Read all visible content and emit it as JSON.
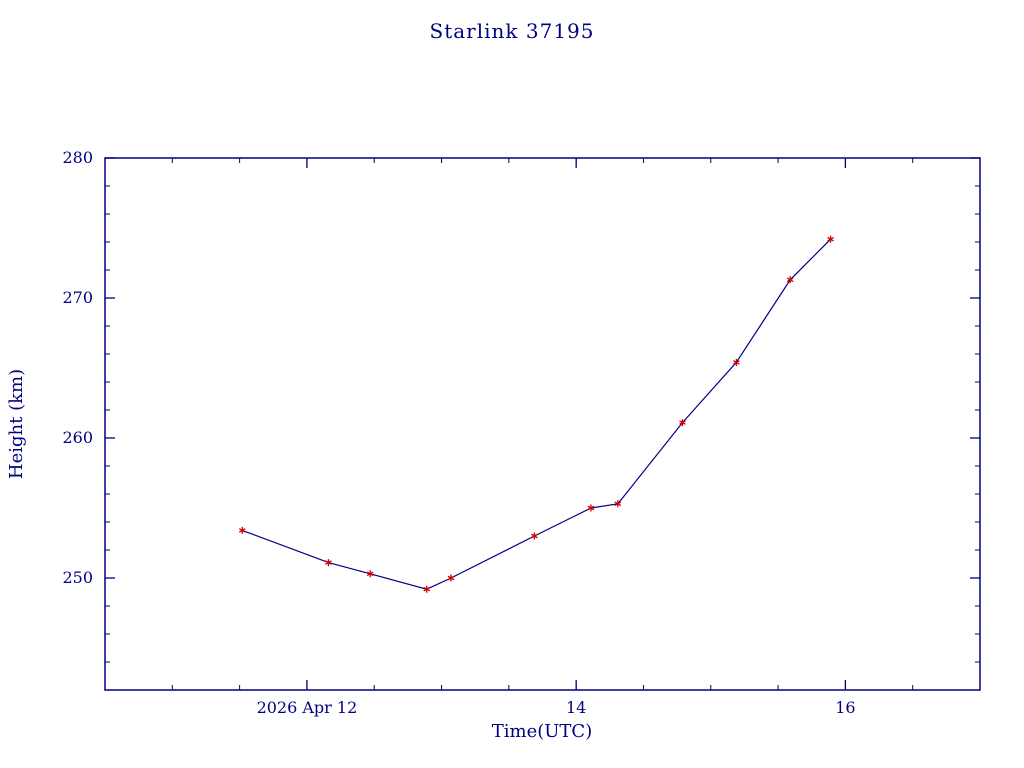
{
  "page": {
    "background_color": "#ffffff"
  },
  "chart_data": {
    "type": "line",
    "title": "Starlink 37195",
    "xlabel": "Time(UTC)",
    "ylabel": "Height (km)",
    "xlim": [
      10.5,
      17.0
    ],
    "ylim": [
      242,
      280
    ],
    "grid": false,
    "legend": "none",
    "axis_color": "#000080",
    "text_color": "#000080",
    "line_color": "#00008b",
    "marker_color": "#cc0000",
    "marker": "asterisk",
    "x_ticks": [
      {
        "value": 12,
        "label": "2026 Apr 12"
      },
      {
        "value": 14,
        "label": "14"
      },
      {
        "value": 16,
        "label": "16"
      }
    ],
    "y_ticks": [
      {
        "value": 250,
        "label": "250"
      },
      {
        "value": 260,
        "label": "260"
      },
      {
        "value": 270,
        "label": "270"
      },
      {
        "value": 280,
        "label": "280"
      }
    ],
    "x_minor_step": 0.5,
    "y_minor_step": 2,
    "series": [
      {
        "name": "height_km",
        "x": [
          11.52,
          12.16,
          12.47,
          12.89,
          13.07,
          13.69,
          14.11,
          14.31,
          14.79,
          15.19,
          15.59,
          15.89
        ],
        "y": [
          253.4,
          251.1,
          250.3,
          249.2,
          250.0,
          253.0,
          255.0,
          255.3,
          261.1,
          265.4,
          271.3,
          274.2
        ]
      }
    ]
  }
}
